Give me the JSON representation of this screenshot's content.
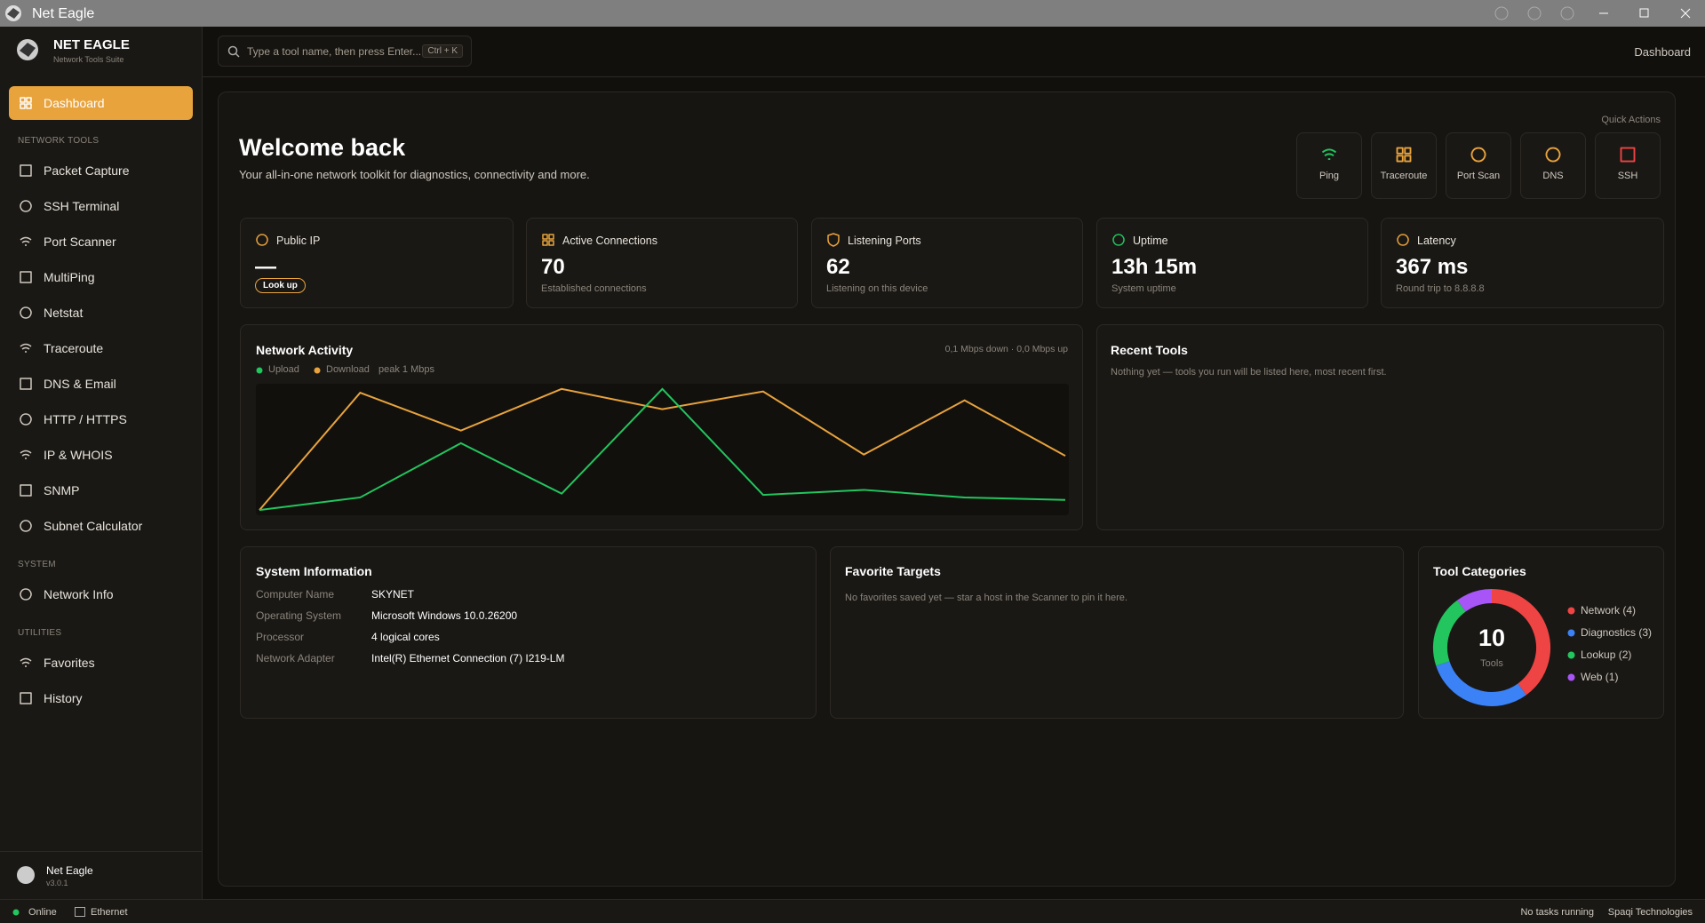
{
  "window": {
    "title": "Net Eagle"
  },
  "sidebar": {
    "brand": "NET EAGLE",
    "tagline": "Network Tools Suite",
    "active": "Dashboard",
    "sections": [
      {
        "heading": "NETWORK TOOLS",
        "items": [
          "Packet Capture",
          "SSH Terminal",
          "Port Scanner",
          "MultiPing",
          "Netstat",
          "Traceroute",
          "DNS & Email",
          "HTTP / HTTPS",
          "IP & WHOIS",
          "SNMP",
          "Subnet Calculator"
        ]
      },
      {
        "heading": "SYSTEM",
        "items": [
          "Network Info"
        ]
      },
      {
        "heading": "UTILITIES",
        "items": [
          "Favorites",
          "History"
        ]
      }
    ],
    "footer": {
      "name": "Net Eagle",
      "version": "v3.0.1"
    }
  },
  "topbar": {
    "search_placeholder": "Type a tool name, then press Enter...",
    "shortcut": "Ctrl + K",
    "page": "Dashboard"
  },
  "welcome": {
    "title": "Welcome back",
    "subtitle": "Your all-in-one network toolkit for diagnostics, connectivity and more."
  },
  "quick_actions": {
    "label": "Quick Actions",
    "items": [
      "Ping",
      "Traceroute",
      "Port Scan",
      "DNS",
      "SSH"
    ]
  },
  "stats": [
    {
      "label": "Public IP",
      "value": "—",
      "button": "Look up"
    },
    {
      "label": "Active Connections",
      "value": 70,
      "note": "Established connections"
    },
    {
      "label": "Listening Ports",
      "value": 62,
      "note": "Listening on this device"
    },
    {
      "label": "Uptime",
      "value": "13h 15m",
      "note": "System uptime"
    },
    {
      "label": "Latency",
      "value": "367 ms",
      "note": "Round trip to 8.8.8.8"
    }
  ],
  "chart_data": [
    {
      "type": "line",
      "title": "Network Activity",
      "subtitle": "0,1 Mbps down · 0,0 Mbps up",
      "annotation": "peak 1 Mbps",
      "ylim": [
        0,
        1
      ],
      "series": [
        {
          "name": "Upload",
          "color": "#22c55e",
          "values": [
            0.02,
            0.12,
            0.55,
            0.15,
            0.98,
            0.14,
            0.18,
            0.12,
            0.1
          ]
        },
        {
          "name": "Download",
          "color": "#e8a33d",
          "values": [
            0.02,
            0.95,
            0.65,
            0.98,
            0.82,
            0.96,
            0.46,
            0.89,
            0.45
          ]
        }
      ]
    },
    {
      "type": "donut",
      "title": "Tool Categories",
      "total": 10,
      "center_label": "Tools",
      "values": [
        4,
        3,
        2,
        1
      ],
      "value_labels": [
        "Network (4)",
        "Diagnostics (3)",
        "Lookup (2)",
        "Web (1)"
      ],
      "colors": [
        "#ef4444",
        "#3b82f6",
        "#22c55e",
        "#a855f7"
      ]
    }
  ],
  "recent_tools": {
    "title": "Recent Tools",
    "empty": "Nothing yet — tools you run will be listed here, most recent first."
  },
  "system_info": {
    "title": "System Information",
    "rows": [
      [
        "Computer Name",
        "SKYNET"
      ],
      [
        "Operating System",
        "Microsoft Windows 10.0.26200"
      ],
      [
        "Processor",
        "4 logical cores"
      ],
      [
        "Network Adapter",
        "Intel(R) Ethernet Connection (7) I219-LM"
      ]
    ]
  },
  "favorites": {
    "title": "Favorite Targets",
    "empty": "No favorites saved yet — star a host in the Scanner to pin it here."
  },
  "statusbar": {
    "left": [
      "Online",
      "Ethernet"
    ],
    "right": [
      "No tasks running",
      "Spaqi Technologies"
    ]
  }
}
